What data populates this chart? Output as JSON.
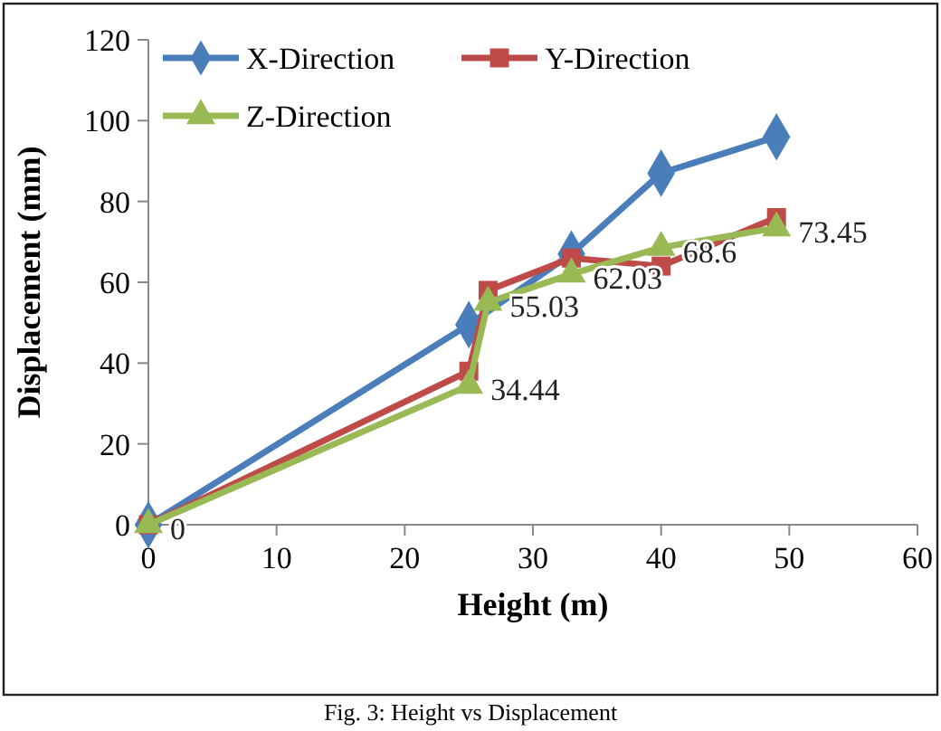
{
  "chart_data": {
    "type": "line",
    "xlabel": "Height (m)",
    "ylabel": "Displacement (mm)",
    "xlim": [
      0,
      60
    ],
    "xticks": [
      0,
      10,
      20,
      30,
      40,
      50,
      60
    ],
    "ylim": [
      0,
      120
    ],
    "yticks": [
      0,
      20,
      40,
      60,
      80,
      100,
      120
    ],
    "grid": false,
    "legend": "top left",
    "annotations": [
      "Fig. 3: Height vs Displacement"
    ],
    "series": [
      {
        "name": "X-Direction",
        "color": "#4a7ebb",
        "marker": "diamond",
        "x": [
          0,
          25,
          33,
          40,
          49
        ],
        "values": [
          0,
          49.5,
          67,
          87,
          96
        ]
      },
      {
        "name": "Y-Direction",
        "color": "#be4b48",
        "marker": "square",
        "x": [
          0,
          25,
          26.5,
          33,
          40,
          49
        ],
        "values": [
          0,
          38,
          58,
          66,
          64,
          76
        ]
      },
      {
        "name": "Z-Direction",
        "color": "#98b954",
        "marker": "triangle",
        "x": [
          0,
          25,
          26.5,
          33,
          40,
          49
        ],
        "values": [
          0,
          34.44,
          55.03,
          62.03,
          68.6,
          73.45
        ],
        "value_labels": [
          "0",
          "34.44",
          "55.03",
          "62.03",
          "68.6",
          "73.45"
        ]
      }
    ]
  }
}
